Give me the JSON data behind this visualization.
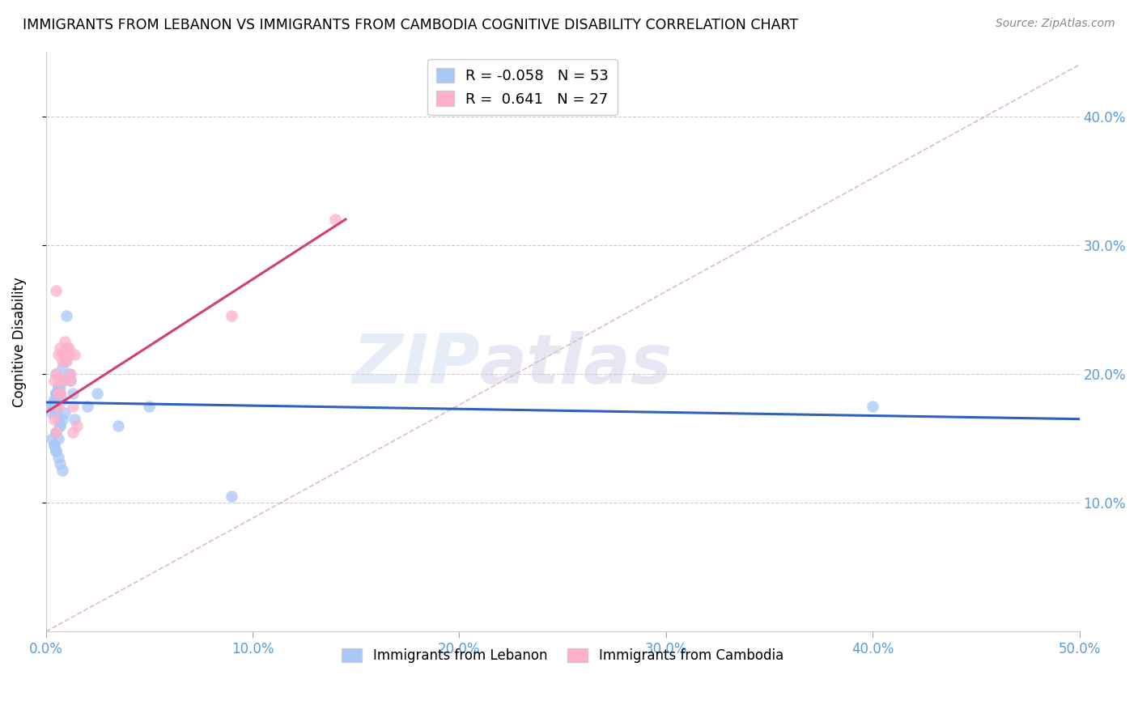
{
  "title": "IMMIGRANTS FROM LEBANON VS IMMIGRANTS FROM CAMBODIA COGNITIVE DISABILITY CORRELATION CHART",
  "source": "Source: ZipAtlas.com",
  "ylabel": "Cognitive Disability",
  "xlim": [
    0.0,
    0.5
  ],
  "ylim": [
    0.0,
    0.45
  ],
  "xticks": [
    0.0,
    0.1,
    0.2,
    0.3,
    0.4,
    0.5
  ],
  "yticks": [
    0.1,
    0.2,
    0.3,
    0.4
  ],
  "legend_r_lebanon": "-0.058",
  "legend_n_lebanon": "53",
  "legend_r_cambodia": "0.641",
  "legend_n_cambodia": "27",
  "color_lebanon": "#A8C8F8",
  "color_cambodia": "#FFB0C8",
  "color_lebanon_line": "#3060C0",
  "color_cambodia_line": "#D04070",
  "color_dashed_line": "#D8A8C0",
  "watermark_zip": "ZIP",
  "watermark_atlas": "atlas",
  "lebanon_x": [
    0.005,
    0.006,
    0.007,
    0.005,
    0.008,
    0.009,
    0.004,
    0.006,
    0.007,
    0.005,
    0.003,
    0.004,
    0.006,
    0.007,
    0.008,
    0.003,
    0.004,
    0.005,
    0.006,
    0.007,
    0.008,
    0.005,
    0.006,
    0.004,
    0.005,
    0.003,
    0.004,
    0.006,
    0.007,
    0.005,
    0.003,
    0.004,
    0.005,
    0.006,
    0.007,
    0.008,
    0.004,
    0.005,
    0.006,
    0.007,
    0.008,
    0.009,
    0.01,
    0.011,
    0.012,
    0.013,
    0.014,
    0.02,
    0.025,
    0.035,
    0.05,
    0.09,
    0.4
  ],
  "lebanon_y": [
    0.185,
    0.19,
    0.185,
    0.2,
    0.205,
    0.21,
    0.175,
    0.18,
    0.195,
    0.17,
    0.175,
    0.18,
    0.185,
    0.19,
    0.195,
    0.175,
    0.18,
    0.185,
    0.19,
    0.185,
    0.18,
    0.185,
    0.19,
    0.175,
    0.175,
    0.17,
    0.175,
    0.165,
    0.16,
    0.155,
    0.15,
    0.145,
    0.14,
    0.135,
    0.13,
    0.125,
    0.145,
    0.14,
    0.15,
    0.16,
    0.165,
    0.17,
    0.245,
    0.2,
    0.195,
    0.185,
    0.165,
    0.175,
    0.185,
    0.16,
    0.175,
    0.105,
    0.175
  ],
  "cambodia_x": [
    0.004,
    0.005,
    0.006,
    0.007,
    0.008,
    0.005,
    0.006,
    0.007,
    0.008,
    0.004,
    0.005,
    0.006,
    0.007,
    0.008,
    0.009,
    0.01,
    0.011,
    0.012,
    0.013,
    0.014,
    0.015,
    0.01,
    0.011,
    0.012,
    0.013,
    0.09,
    0.14
  ],
  "cambodia_y": [
    0.195,
    0.2,
    0.175,
    0.185,
    0.195,
    0.265,
    0.215,
    0.22,
    0.21,
    0.165,
    0.155,
    0.185,
    0.195,
    0.215,
    0.225,
    0.21,
    0.22,
    0.195,
    0.175,
    0.215,
    0.16,
    0.22,
    0.215,
    0.2,
    0.155,
    0.245,
    0.32
  ],
  "leb_line_x0": 0.0,
  "leb_line_x1": 0.5,
  "leb_line_y0": 0.178,
  "leb_line_y1": 0.165,
  "cam_line_x0": 0.0,
  "cam_line_x1": 0.145,
  "cam_line_y0": 0.17,
  "cam_line_y1": 0.32,
  "dash_line_x0": 0.0,
  "dash_line_x1": 0.5,
  "dash_line_y0": 0.0,
  "dash_line_y1": 0.44
}
